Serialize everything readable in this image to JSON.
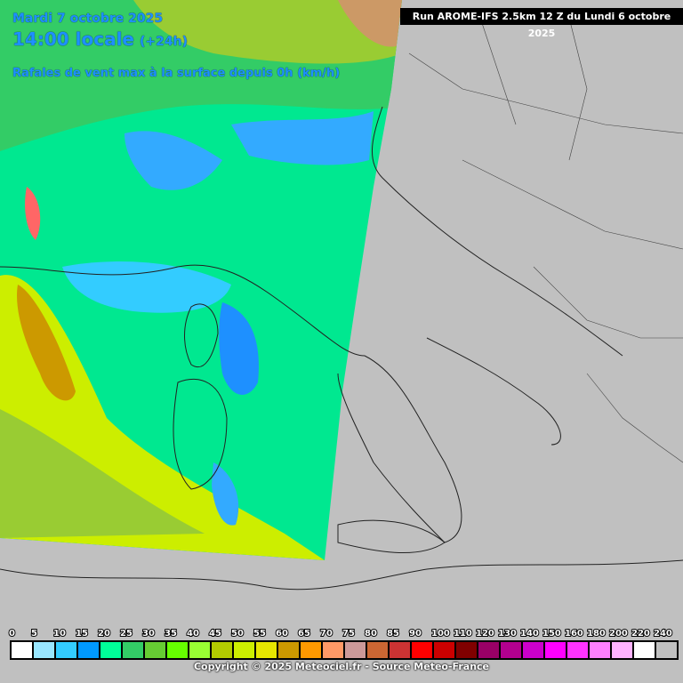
{
  "header": {
    "date": "Mardi 7 octobre 2025",
    "time": "14:00 locale",
    "lead": "(+24h)",
    "subtitle": "Rafales de vent max à la surface depuis 0h (km/h)"
  },
  "run": "Run AROME-IFS 2.5km 12 Z du Lundi 6 octobre 2025",
  "legend": {
    "ticks": [
      0,
      5,
      10,
      15,
      20,
      25,
      30,
      35,
      40,
      45,
      50,
      55,
      60,
      65,
      70,
      75,
      80,
      85,
      90,
      100,
      110,
      120,
      130,
      140,
      150,
      160,
      180,
      200,
      220,
      240
    ],
    "colors": [
      "#ffffff",
      "#99e6ff",
      "#33ccff",
      "#0099ff",
      "#00ff99",
      "#33cc66",
      "#66cc33",
      "#66ff00",
      "#99ff33",
      "#b3cc00",
      "#ccee00",
      "#e6e600",
      "#cc9900",
      "#ff9900",
      "#ff9966",
      "#cc9999",
      "#cc6633",
      "#cc3333",
      "#ff0000",
      "#cc0000",
      "#800000",
      "#990066",
      "#b3008f",
      "#cc00cc",
      "#ff00ff",
      "#ff33ff",
      "#ff80ff",
      "#ffb3ff",
      "#ffffff",
      "#c0c0c0"
    ]
  },
  "footer": "Copyright © 2025 Meteociel.fr - Source Meteo-France"
}
